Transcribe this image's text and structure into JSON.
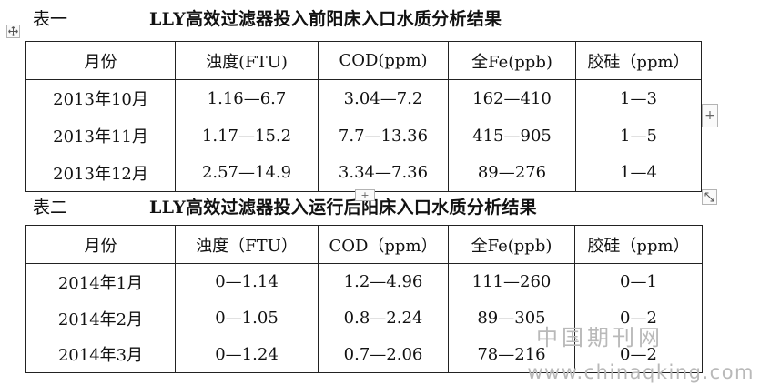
{
  "table1": {
    "caption_label": "表一",
    "caption_title": "LLY高效过滤器投入前阳床入口水质分析结果",
    "headers": [
      "月份",
      "浊度(FTU)",
      "COD(ppm)",
      "全Fe(ppb)",
      "胶硅（ppm）"
    ],
    "rows": [
      [
        "2013年10月",
        "1.16—6.7",
        "3.04—7.2",
        "162—410",
        "1—3"
      ],
      [
        "2013年11月",
        "1.17—15.2",
        "7.7—13.36",
        "415—905",
        "1—5"
      ],
      [
        "2013年12月",
        "2.57—14.9",
        "3.34—7.36",
        "89—276",
        "1—4"
      ]
    ]
  },
  "table2": {
    "caption_label": "表二",
    "caption_title": "LLY高效过滤器投入运行后阳床入口水质分析结果",
    "headers": [
      "月份",
      "浊度（FTU）",
      "COD（ppm）",
      "全Fe(ppb)",
      "胶硅（ppm）"
    ],
    "rows": [
      [
        "2014年1月",
        "0—1.14",
        "1.2—4.96",
        "111—260",
        "0—1"
      ],
      [
        "2014年2月",
        "0—1.05",
        "0.8—2.24",
        "89—305",
        "0—2"
      ],
      [
        "2014年3月",
        "0—1.24",
        "0.7—2.06",
        "78—216",
        "0—2"
      ]
    ]
  },
  "handles": {
    "move_icon": "move-arrows-icon",
    "insert_row_glyph": "+",
    "insert_col_glyph": "+",
    "resize_icon": "resize-arrow-icon"
  },
  "watermark": {
    "name_cn": "中国期刊网",
    "url": "www.chinaqking.com"
  }
}
